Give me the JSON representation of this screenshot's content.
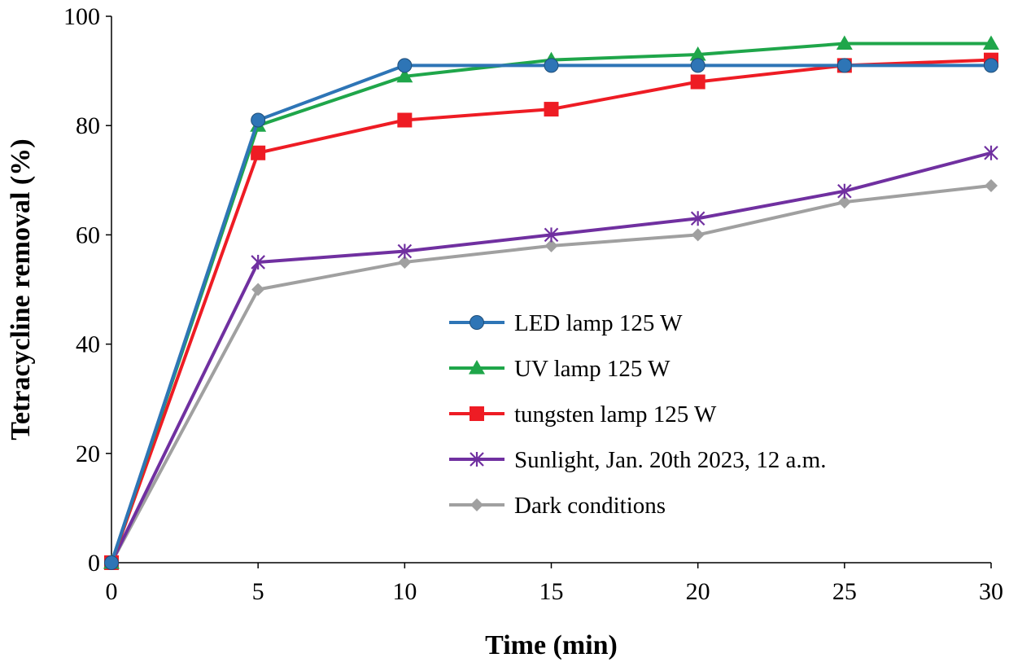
{
  "chart_data": {
    "type": "line",
    "title": "",
    "xlabel": "Time (min)",
    "ylabel": "Tetracycline removal (%)",
    "x": [
      0,
      5,
      10,
      15,
      20,
      25,
      30
    ],
    "xlim": [
      0,
      30
    ],
    "ylim": [
      0,
      100
    ],
    "xticks": [
      0,
      5,
      10,
      15,
      20,
      25,
      30
    ],
    "yticks": [
      0,
      20,
      40,
      60,
      80,
      100
    ],
    "grid": false,
    "legend_position": "center-right",
    "series": [
      {
        "name": "LED lamp 125 W",
        "color": "#2e75b6",
        "marker": "circle",
        "values": [
          0,
          81,
          91,
          91,
          91,
          91,
          91
        ]
      },
      {
        "name": "UV lamp 125 W",
        "color": "#1fa64a",
        "marker": "triangle",
        "values": [
          0,
          80,
          89,
          92,
          93,
          95,
          95
        ]
      },
      {
        "name": "tungsten lamp 125 W",
        "color": "#ee1c24",
        "marker": "square",
        "values": [
          0,
          75,
          81,
          83,
          88,
          91,
          92
        ]
      },
      {
        "name": "Sunlight, Jan. 20th 2023, 12 a.m.",
        "color": "#7030a0",
        "marker": "asterisk",
        "values": [
          0,
          55,
          57,
          60,
          63,
          68,
          75
        ]
      },
      {
        "name": "Dark conditions",
        "color": "#a0a0a0",
        "marker": "diamond",
        "values": [
          0,
          50,
          55,
          58,
          60,
          66,
          69
        ]
      }
    ]
  }
}
